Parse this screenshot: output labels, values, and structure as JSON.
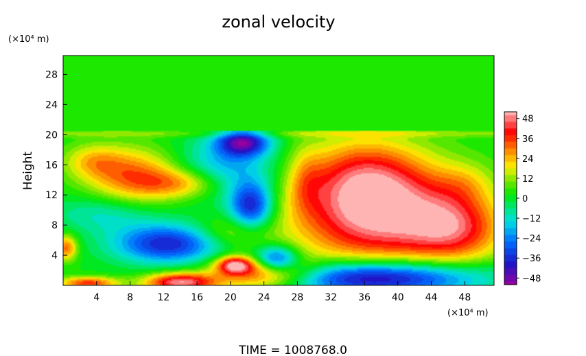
{
  "chart_data": {
    "type": "heatmap",
    "title": "zonal velocity",
    "ylabel": "Height",
    "x_unit_label": "(×10⁴ m)",
    "y_unit_label": "(×10⁴ m)",
    "footer": "TIME  =  1008768.0",
    "xlim": [
      0,
      51.5
    ],
    "ylim": [
      0,
      30.5
    ],
    "x_ticks": [
      4,
      8,
      12,
      16,
      20,
      24,
      28,
      32,
      36,
      40,
      44,
      48
    ],
    "y_ticks": [
      4,
      8,
      12,
      16,
      20,
      24,
      28
    ],
    "colorbar": {
      "vmin": -52,
      "vmax": 52,
      "ticks": [
        48,
        36,
        24,
        12,
        0,
        -12,
        -24,
        -36,
        -48
      ],
      "tick_labels": [
        "48",
        "36",
        "24",
        "12",
        "0",
        "−12",
        "−24",
        "−36",
        "−48"
      ]
    },
    "background_value": 2,
    "upper_layer": {
      "y_from": 20.5,
      "value": 4
    },
    "features": [
      {
        "x": 8.5,
        "y": 14.5,
        "sx": 4.0,
        "sy": 2.6,
        "value": 30
      },
      {
        "x": 14.5,
        "y": 13.5,
        "sx": 3.5,
        "sy": 1.4,
        "value": 22
      },
      {
        "x": 3.5,
        "y": 16.5,
        "sx": 2.5,
        "sy": 1.6,
        "value": 16
      },
      {
        "x": 37.5,
        "y": 9.5,
        "sx": 7.0,
        "sy": 4.8,
        "value": 50
      },
      {
        "x": 47.0,
        "y": 7.5,
        "sx": 4.0,
        "sy": 3.2,
        "value": 30
      },
      {
        "x": 36.0,
        "y": 15.0,
        "sx": 5.0,
        "sy": 3.5,
        "value": 22
      },
      {
        "x": 37.0,
        "y": 1.0,
        "sx": 9.0,
        "sy": 1.6,
        "value": -52
      },
      {
        "x": 12.5,
        "y": 5.5,
        "sx": 4.5,
        "sy": 1.8,
        "value": -40
      },
      {
        "x": 21.5,
        "y": 19.0,
        "sx": 2.2,
        "sy": 1.3,
        "value": -44
      },
      {
        "x": 22.5,
        "y": 10.5,
        "sx": 1.8,
        "sy": 2.2,
        "value": -40
      },
      {
        "x": 25.5,
        "y": 3.5,
        "sx": 1.8,
        "sy": 1.2,
        "value": -38
      },
      {
        "x": 19.5,
        "y": 15.5,
        "sx": 4.5,
        "sy": 3.0,
        "value": -22
      },
      {
        "x": 5.0,
        "y": 9.5,
        "sx": 4.5,
        "sy": 1.8,
        "value": -14
      },
      {
        "x": 20.0,
        "y": 7.0,
        "sx": 3.0,
        "sy": 1.5,
        "value": 14
      },
      {
        "x": 24.0,
        "y": 1.5,
        "sx": 4.5,
        "sy": 1.5,
        "value": 42
      },
      {
        "x": 14.0,
        "y": 0.4,
        "sx": 3.0,
        "sy": 0.9,
        "value": 48
      },
      {
        "x": 20.5,
        "y": 2.7,
        "sx": 1.5,
        "sy": 0.8,
        "value": 40
      },
      {
        "x": 3.0,
        "y": 0.3,
        "sx": 2.5,
        "sy": 0.6,
        "value": 34
      },
      {
        "x": 0.4,
        "y": 5.0,
        "sx": 0.9,
        "sy": 1.2,
        "value": 30
      },
      {
        "x": 29.0,
        "y": 14.0,
        "sx": 1.5,
        "sy": 3.0,
        "value": 12
      },
      {
        "x": 48.0,
        "y": 13.5,
        "sx": 2.5,
        "sy": 2.0,
        "value": 10
      }
    ]
  }
}
